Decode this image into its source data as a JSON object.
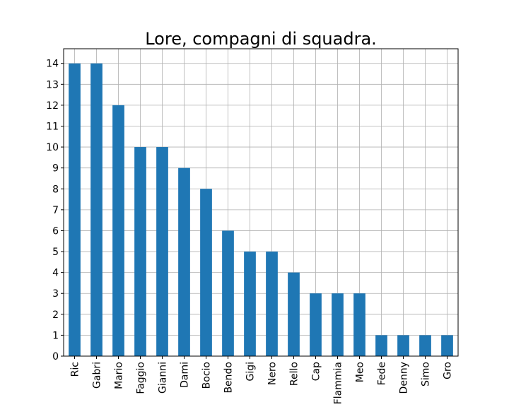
{
  "chart_data": {
    "type": "bar",
    "title": "Lore, compagni di squadra.",
    "xlabel": "",
    "ylabel": "",
    "categories": [
      "Ric",
      "Gabri",
      "Mario",
      "Faggio",
      "Gianni",
      "Dami",
      "Bocio",
      "Bendo",
      "Gigi",
      "Nero",
      "Rello",
      "Cap",
      "Flammia",
      "Meo",
      "Fede",
      "Denny",
      "Simo",
      "Gro"
    ],
    "values": [
      14,
      14,
      12,
      10,
      10,
      9,
      8,
      6,
      5,
      5,
      4,
      3,
      3,
      3,
      1,
      1,
      1,
      1
    ],
    "ylim": [
      0,
      14.7
    ],
    "yticks": [
      "0",
      "1",
      "2",
      "3",
      "4",
      "5",
      "6",
      "7",
      "8",
      "9",
      "10",
      "11",
      "12",
      "13",
      "14"
    ],
    "grid": true,
    "bar_color": "#1f77b4",
    "grid_color": "#b0b0b0"
  }
}
